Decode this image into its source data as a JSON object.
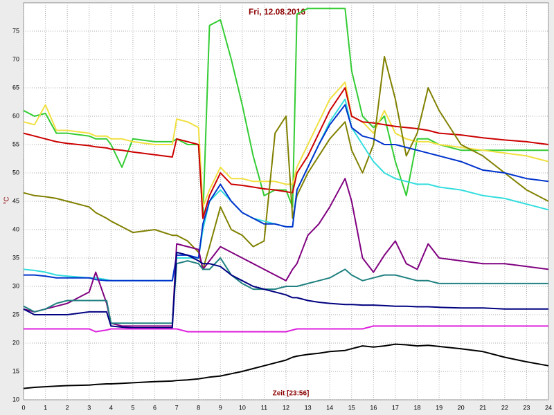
{
  "chart_data": {
    "type": "line",
    "title": "Fri, 12.08.2016",
    "x_label": "Zeit [23:56]",
    "y_label": "°C",
    "x": [
      0,
      0.5,
      1,
      1.5,
      2,
      3,
      3.3,
      3.8,
      4,
      4.5,
      5,
      6,
      6.8,
      7,
      7.5,
      8,
      8.2,
      8.5,
      9,
      9.5,
      10,
      10.5,
      11,
      11.5,
      12,
      12.3,
      12.5,
      13,
      13.5,
      14,
      14.7,
      15,
      15.5,
      16,
      16.5,
      17,
      17.5,
      18,
      18.5,
      19,
      20,
      21,
      22,
      23,
      24
    ],
    "xlim": [
      0,
      24
    ],
    "xticks": [
      0,
      1,
      2,
      3,
      4,
      5,
      6,
      7,
      8,
      9,
      10,
      11,
      12,
      13,
      14,
      15,
      16,
      17,
      18,
      19,
      20,
      21,
      22,
      23,
      24
    ],
    "ylim": [
      10,
      80
    ],
    "yticks": [
      10,
      15,
      20,
      25,
      30,
      35,
      40,
      45,
      50,
      55,
      60,
      65,
      70,
      75
    ],
    "grid": true,
    "series": [
      {
        "color": "#33cc33",
        "values": [
          61,
          60,
          60.5,
          57,
          57,
          56.5,
          56,
          56,
          55,
          51,
          56,
          55.5,
          55.5,
          56,
          55,
          55,
          42,
          76,
          77,
          70,
          62,
          53,
          46,
          47,
          47,
          44,
          78,
          79,
          79,
          79,
          79,
          68,
          60,
          58,
          60,
          52,
          46,
          56,
          56,
          55,
          54,
          54,
          54,
          54,
          54
        ]
      },
      {
        "color": "#f0e040",
        "values": [
          59,
          58.5,
          62,
          57.5,
          57.5,
          57,
          56.5,
          56.5,
          56,
          56,
          55.5,
          55,
          55,
          59.5,
          59,
          58,
          44,
          47,
          51,
          49,
          49,
          48.5,
          48.5,
          48.5,
          48,
          48,
          51,
          55,
          59,
          63,
          66,
          60,
          59,
          57,
          61,
          57,
          56,
          55.5,
          55.5,
          55,
          54.5,
          54,
          53.5,
          53,
          52
        ]
      },
      {
        "color": "#cc0000",
        "values": [
          57,
          56.5,
          56,
          55.5,
          55.2,
          54.8,
          54.6,
          54.4,
          54.2,
          54,
          53.7,
          53.2,
          52.8,
          56,
          55.5,
          55,
          42,
          46,
          50,
          48,
          47.8,
          47.5,
          47.2,
          47,
          46.7,
          46.5,
          50,
          53,
          57,
          61,
          65,
          60,
          59,
          58.8,
          58.5,
          58.2,
          58,
          57.8,
          57.5,
          57,
          56.7,
          56.2,
          55.8,
          55.5,
          55
        ]
      },
      {
        "color": "#808000",
        "values": [
          46.5,
          46,
          45.8,
          45.5,
          45,
          44,
          43,
          42,
          41.5,
          40.5,
          39.5,
          40,
          39,
          39,
          38,
          36,
          33,
          37,
          44,
          40,
          39,
          37,
          38,
          57,
          60,
          42,
          46,
          50,
          53,
          56,
          59,
          54,
          50,
          55,
          70.5,
          63,
          53,
          57,
          65,
          61,
          55,
          53,
          50,
          47,
          45
        ]
      },
      {
        "color": "#33dddd",
        "values": [
          33,
          32.8,
          32.5,
          32,
          31.8,
          31.5,
          31.5,
          31.2,
          31,
          31,
          31,
          31,
          31,
          35,
          35,
          35,
          40,
          45,
          47,
          45,
          43,
          42,
          41.5,
          41,
          40.5,
          40.5,
          47,
          51,
          55,
          59,
          63,
          58,
          55,
          52,
          50,
          49,
          48.5,
          48,
          48,
          47.5,
          47,
          46,
          45.5,
          44.5,
          43.5
        ]
      },
      {
        "color": "#0033cc",
        "values": [
          32,
          32,
          31.8,
          31.5,
          31.5,
          31.5,
          31.2,
          31,
          31,
          31,
          31,
          31,
          31,
          35.5,
          35.5,
          35,
          41,
          45,
          48,
          45,
          43,
          42,
          41,
          41,
          40.5,
          40.5,
          47,
          51,
          55,
          58.5,
          62,
          58,
          56.5,
          56,
          55,
          55,
          54.5,
          54,
          53.5,
          53,
          52,
          50.5,
          50,
          49,
          48.5
        ]
      },
      {
        "color": "#800080",
        "values": [
          26,
          25.5,
          26,
          26.5,
          27,
          29,
          32.5,
          27,
          23.5,
          23,
          23,
          23,
          23,
          37.5,
          37,
          36.5,
          33,
          34.5,
          37,
          36,
          35,
          34,
          33,
          32,
          31,
          33,
          34,
          39,
          41,
          44,
          49,
          45,
          35,
          32.5,
          35.5,
          38,
          34,
          33,
          37.5,
          35,
          34.5,
          34,
          34,
          33.5,
          33
        ]
      },
      {
        "color": "#208080",
        "values": [
          26.5,
          25.5,
          26,
          27,
          27.5,
          27.5,
          27.5,
          27.5,
          23.5,
          23.5,
          23.5,
          23.5,
          23.5,
          34,
          34.5,
          34,
          33,
          33,
          35,
          32,
          30.5,
          29.5,
          29.5,
          29.5,
          30,
          30,
          30,
          30.5,
          31,
          31.5,
          33,
          32,
          31,
          31.5,
          32,
          32,
          31.5,
          31,
          31,
          30.5,
          30.5,
          30.5,
          30.5,
          30.5,
          30.5
        ]
      },
      {
        "color": "#000080",
        "values": [
          26,
          25,
          25,
          25,
          25,
          25.5,
          25.5,
          25.5,
          23,
          22.8,
          22.7,
          22.7,
          22.7,
          36,
          35.5,
          34.5,
          34,
          34,
          33.5,
          32,
          31,
          30,
          29.5,
          29,
          28.5,
          28,
          28,
          27.5,
          27.2,
          27,
          26.8,
          26.8,
          26.7,
          26.7,
          26.6,
          26.5,
          26.5,
          26.4,
          26.4,
          26.3,
          26.2,
          26.2,
          26,
          26,
          26
        ]
      },
      {
        "color": "#dd22dd",
        "values": [
          22.5,
          22.5,
          22.5,
          22.5,
          22.5,
          22.5,
          22,
          22.3,
          22.5,
          22.5,
          22.5,
          22.5,
          22.5,
          22.5,
          22,
          22,
          22,
          22,
          22,
          22,
          22,
          22,
          22,
          22,
          22,
          22.3,
          22.5,
          22.5,
          22.5,
          22.5,
          22.5,
          22.5,
          22.5,
          23,
          23,
          23,
          23,
          23,
          23,
          23,
          23,
          23,
          23,
          23,
          23
        ]
      },
      {
        "color": "#000000",
        "values": [
          12,
          12.2,
          12.3,
          12.4,
          12.5,
          12.6,
          12.7,
          12.8,
          12.8,
          12.9,
          13,
          13.2,
          13.3,
          13.4,
          13.5,
          13.7,
          13.8,
          14,
          14.2,
          14.6,
          15,
          15.5,
          16,
          16.5,
          17,
          17.5,
          17.7,
          18,
          18.2,
          18.5,
          18.7,
          19,
          19.5,
          19.3,
          19.5,
          19.8,
          19.7,
          19.5,
          19.6,
          19.4,
          19,
          18.5,
          17.5,
          16.7,
          16
        ]
      }
    ]
  }
}
